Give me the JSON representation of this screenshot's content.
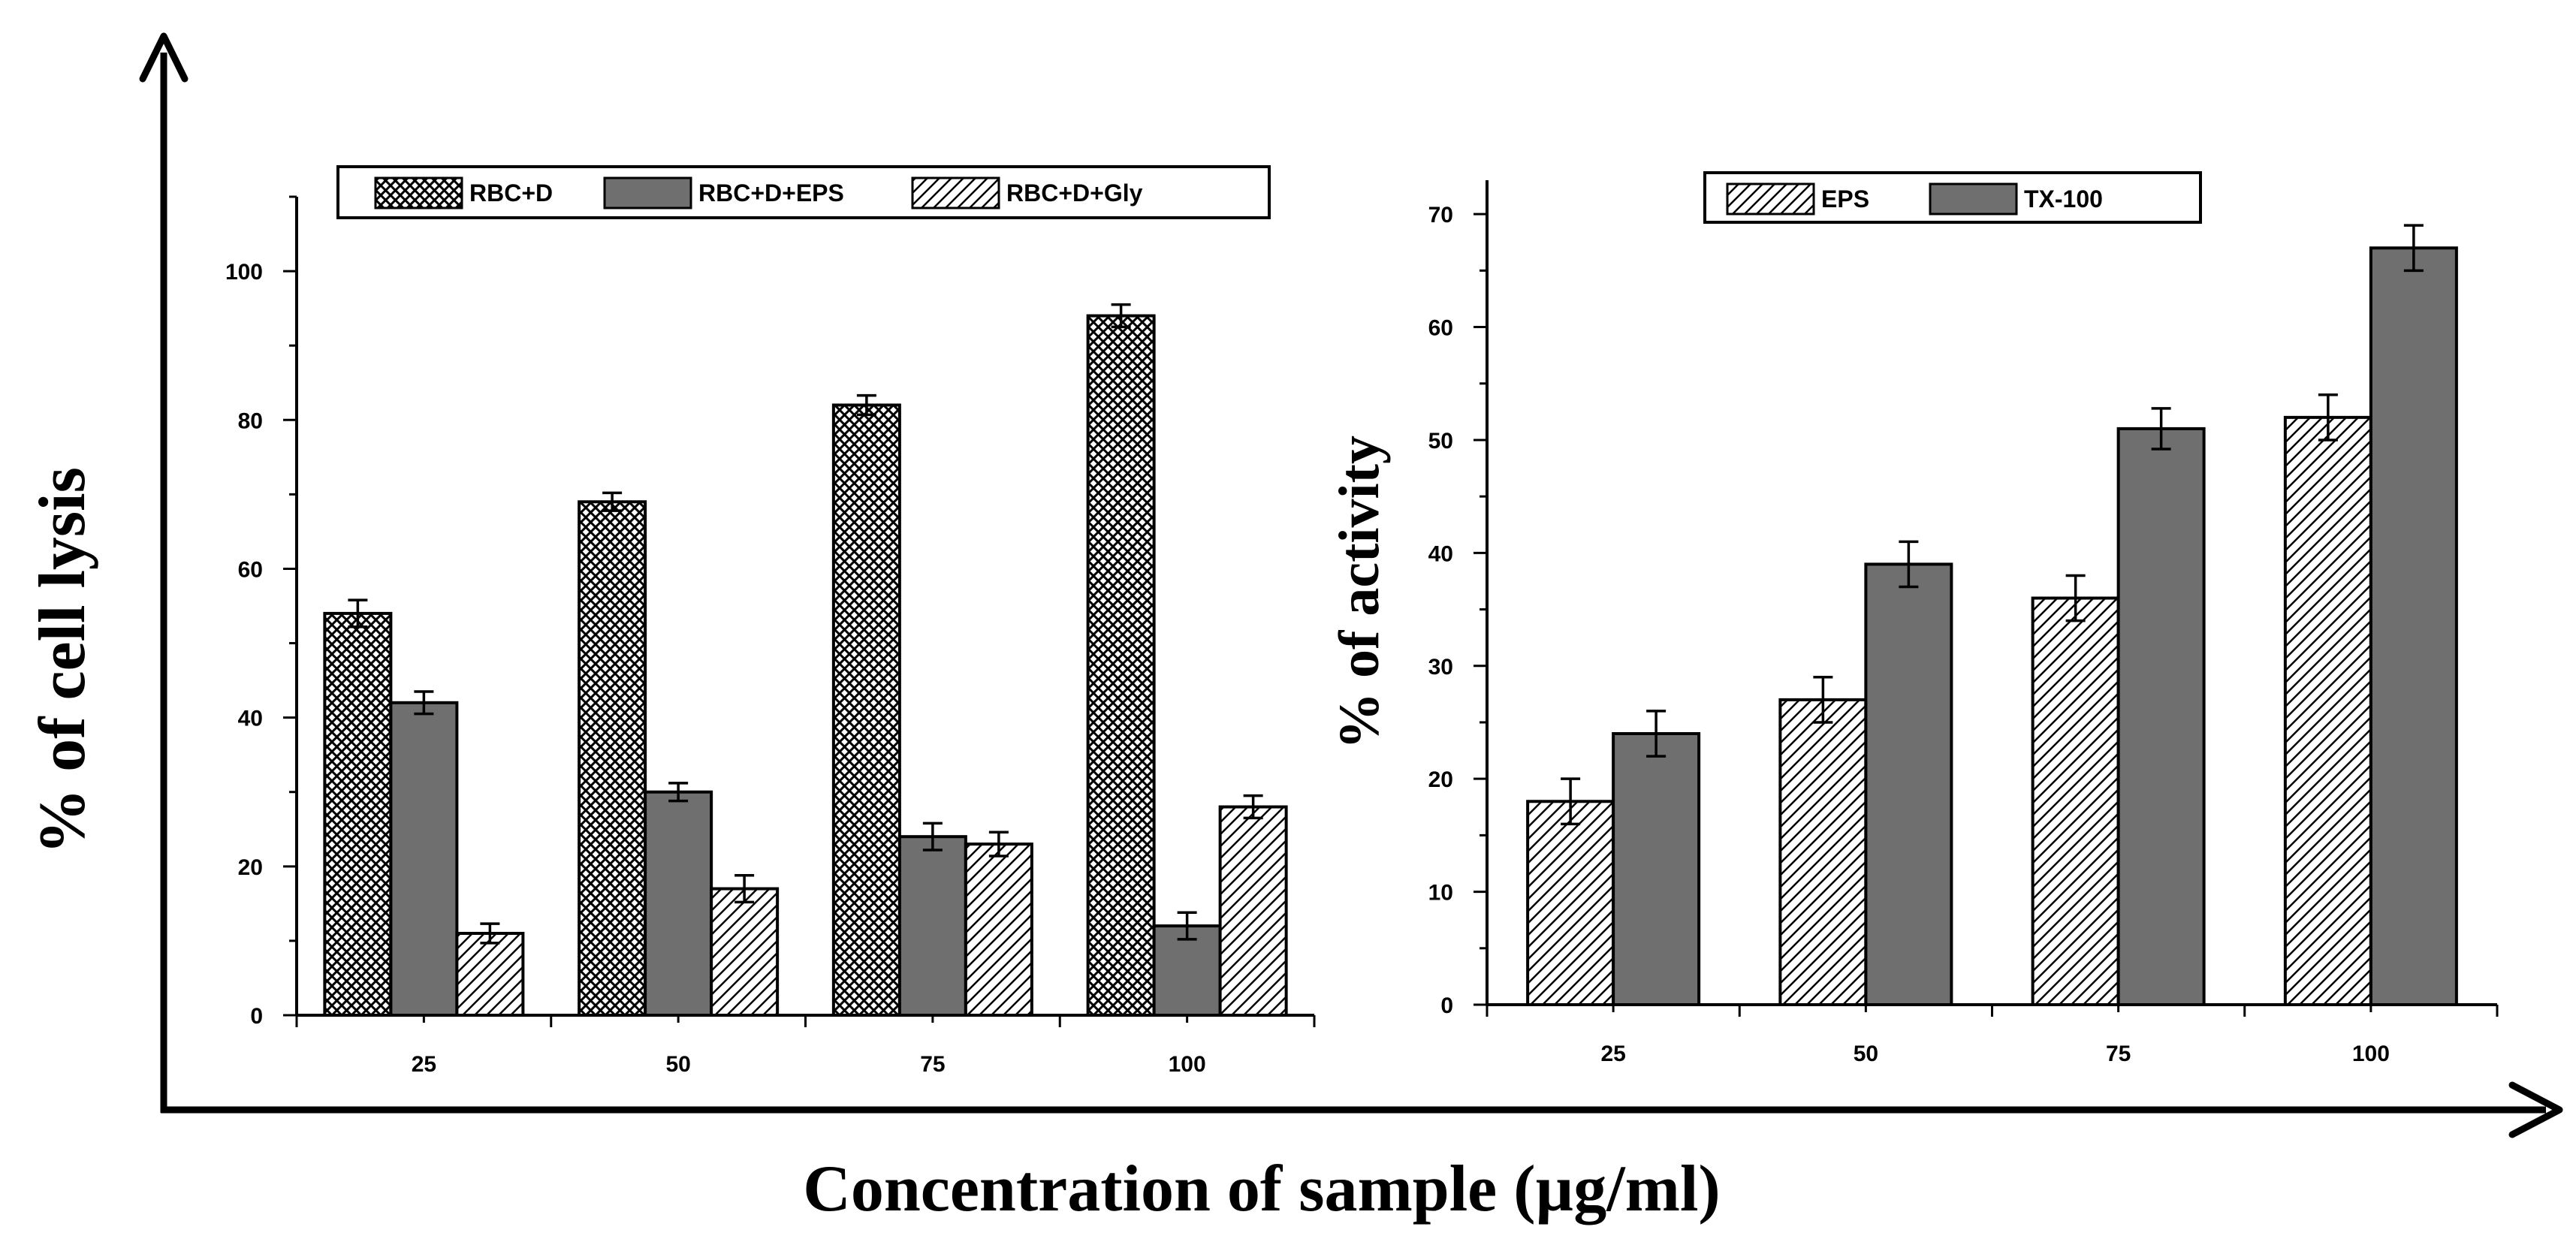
{
  "figure": {
    "shared_ylabel": "% of cell lysis",
    "shared_xlabel": "Concentration  of sample (µg/ml)"
  },
  "chart_data": [
    {
      "type": "bar",
      "title": "",
      "xlabel": "",
      "ylabel": "% of cell lysis",
      "categories": [
        "25",
        "50",
        "75",
        "100"
      ],
      "ylim": [
        0,
        110
      ],
      "yticks": [
        0,
        20,
        40,
        60,
        80,
        100
      ],
      "legend_position": "top",
      "series": [
        {
          "name": "RBC+D",
          "pattern": "crosshatch",
          "values": [
            54,
            69,
            82,
            94
          ],
          "errors": [
            1.8,
            1.2,
            1.3,
            1.5
          ]
        },
        {
          "name": "RBC+D+EPS",
          "pattern": "solid",
          "values": [
            42,
            30,
            24,
            12
          ],
          "errors": [
            1.5,
            1.2,
            1.8,
            1.8
          ]
        },
        {
          "name": "RBC+D+Gly",
          "pattern": "hatch",
          "values": [
            11,
            17,
            23,
            28
          ],
          "errors": [
            1.3,
            1.8,
            1.6,
            1.5
          ]
        }
      ]
    },
    {
      "type": "bar",
      "title": "",
      "xlabel": "",
      "ylabel": "% of activity",
      "categories": [
        "25",
        "50",
        "75",
        "100"
      ],
      "ylim": [
        0,
        73
      ],
      "yticks": [
        0,
        10,
        20,
        30,
        40,
        50,
        60,
        70
      ],
      "legend_position": "top",
      "series": [
        {
          "name": "EPS",
          "pattern": "hatch",
          "values": [
            18,
            27,
            36,
            52
          ],
          "errors": [
            2,
            2,
            2,
            2
          ]
        },
        {
          "name": "TX-100",
          "pattern": "solid",
          "values": [
            24,
            39,
            51,
            67
          ],
          "errors": [
            2,
            2,
            1.8,
            2
          ]
        }
      ]
    }
  ],
  "colors": {
    "bar_solid": "#6f6f6f",
    "ink": "#000000",
    "background": "#ffffff"
  }
}
